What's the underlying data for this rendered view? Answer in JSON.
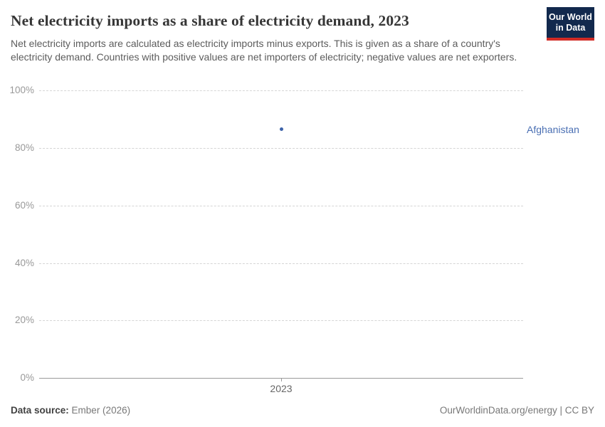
{
  "header": {
    "title": "Net electricity imports as a share of electricity demand, 2023",
    "subtitle": "Net electricity imports are calculated as electricity imports minus exports. This is given as a share of a country's electricity demand. Countries with positive values are net importers of electricity; negative values are net exporters.",
    "logo": {
      "line1": "Our World",
      "line2": "in Data"
    }
  },
  "chart_data": {
    "type": "scatter",
    "title": "Net electricity imports as a share of electricity demand, 2023",
    "x": [
      "2023"
    ],
    "series": [
      {
        "name": "Afghanistan",
        "values": [
          86.4
        ],
        "color": "#3d63a9",
        "label_color": "#4a6fb3"
      }
    ],
    "xlabel": "",
    "ylabel": "",
    "ylim": [
      0,
      100
    ],
    "yticks": [
      "0%",
      "20%",
      "40%",
      "60%",
      "80%",
      "100%"
    ],
    "xticks": [
      "2023"
    ],
    "grid": "horizontal-dashed",
    "legend_position": "entity-label-right"
  },
  "footer": {
    "datasource_label": "Data source:",
    "datasource_value": "Ember (2026)",
    "attribution": "OurWorldinData.org/energy | CC BY"
  },
  "colors": {
    "background": "#ffffff",
    "title_text": "#363636",
    "subtitle_text": "#5c5c5c",
    "axis_text": "#999999",
    "gridline": "#d5d5d5",
    "logo_navy": "#12294d",
    "logo_red": "#d12b25",
    "series_blue": "#3d63a9"
  }
}
